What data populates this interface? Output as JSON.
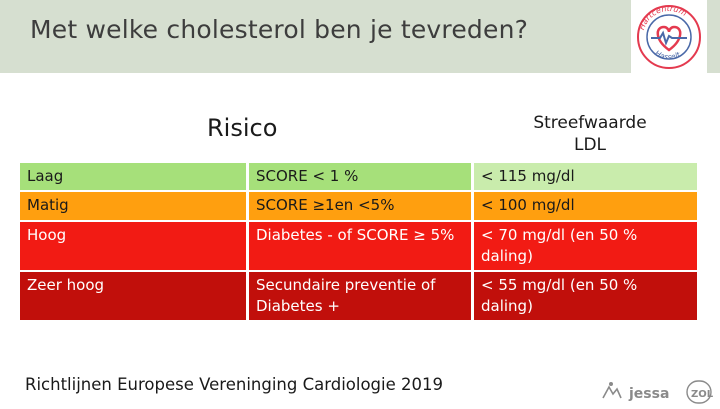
{
  "header": {
    "title": "Met welke cholesterol ben je tevreden?",
    "logo": {
      "top_text": "Hartcentrum",
      "bottom_text": "Hasselt"
    },
    "background_color": "#d6dfd0"
  },
  "table": {
    "headers": {
      "risk": "Risico",
      "target_line1": "Streefwaarde",
      "target_line2": "LDL"
    },
    "rows": [
      {
        "risk": "Laag",
        "score": "SCORE < 1 %",
        "target": "< 115 mg/dl",
        "color": "#a6e07a"
      },
      {
        "risk": "Matig",
        "score": "SCORE ≥1en <5%",
        "target": "< 100 mg/dl",
        "color": "#ff9f0f"
      },
      {
        "risk": "Hoog",
        "score": "Diabetes - of SCORE ≥ 5%",
        "target": "< 70 mg/dl (en 50 % daling)",
        "color": "#f21b14"
      },
      {
        "risk": "Zeer hoog",
        "score": "Secundaire preventie of Diabetes +",
        "target": "< 55 mg/dl (en 50 % daling)",
        "color": "#c10f0b"
      }
    ]
  },
  "footer": {
    "text": "Richtlijnen Europese Vereninging Cardiologie 2019"
  },
  "bottom_logos": {
    "jessa": "jessa",
    "zol": "ZOL"
  }
}
